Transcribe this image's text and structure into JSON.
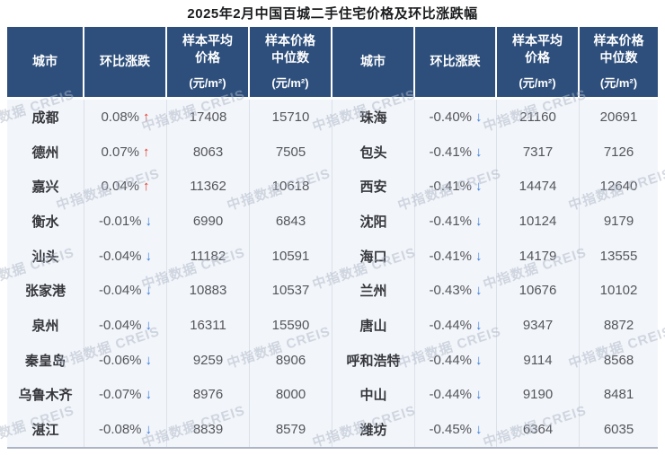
{
  "watermark": "中指数据 CREIS",
  "glyphs": {
    "up": "↑",
    "down": "↓"
  },
  "colors": {
    "header_bg": "#2E4F7C",
    "body_bg": "#F2F5FA",
    "up": "#E03A2A",
    "down": "#3C7EDB",
    "watermark": "#AEB7C6"
  },
  "header": {
    "city": "城市",
    "change": "环比涨跌",
    "avg_l1": "样本平均",
    "avg_l2": "价格",
    "med_l1": "样本价格",
    "med_l2": "中位数",
    "unit": "(元/m²)"
  },
  "chart_data": {
    "type": "table",
    "title": "2025年2月中国百城二手住宅价格及环比涨跌幅",
    "columns": [
      "城市",
      "环比涨跌",
      "样本平均价格(元/m²)",
      "样本价格中位数(元/m²)",
      "城市",
      "环比涨跌",
      "样本平均价格(元/m²)",
      "样本价格中位数(元/m²)"
    ],
    "rows_left": [
      {
        "city": "成都",
        "change": "0.08%",
        "direction": "up",
        "avg": "17408",
        "median": "15710"
      },
      {
        "city": "德州",
        "change": "0.07%",
        "direction": "up",
        "avg": "8063",
        "median": "7505"
      },
      {
        "city": "嘉兴",
        "change": "0.04%",
        "direction": "up",
        "avg": "11362",
        "median": "10618"
      },
      {
        "city": "衡水",
        "change": "-0.01%",
        "direction": "down",
        "avg": "6990",
        "median": "6843"
      },
      {
        "city": "汕头",
        "change": "-0.04%",
        "direction": "down",
        "avg": "11182",
        "median": "10591"
      },
      {
        "city": "张家港",
        "change": "-0.04%",
        "direction": "down",
        "avg": "10883",
        "median": "10537"
      },
      {
        "city": "泉州",
        "change": "-0.04%",
        "direction": "down",
        "avg": "16311",
        "median": "15590"
      },
      {
        "city": "秦皇岛",
        "change": "-0.06%",
        "direction": "down",
        "avg": "9259",
        "median": "8906"
      },
      {
        "city": "乌鲁木齐",
        "change": "-0.07%",
        "direction": "down",
        "avg": "8976",
        "median": "8000"
      },
      {
        "city": "湛江",
        "change": "-0.08%",
        "direction": "down",
        "avg": "8839",
        "median": "8579"
      }
    ],
    "rows_right": [
      {
        "city": "珠海",
        "change": "-0.40%",
        "direction": "down",
        "avg": "21160",
        "median": "20691"
      },
      {
        "city": "包头",
        "change": "-0.41%",
        "direction": "down",
        "avg": "7317",
        "median": "7126"
      },
      {
        "city": "西安",
        "change": "-0.41%",
        "direction": "down",
        "avg": "14474",
        "median": "12640"
      },
      {
        "city": "沈阳",
        "change": "-0.41%",
        "direction": "down",
        "avg": "10124",
        "median": "9179"
      },
      {
        "city": "海口",
        "change": "-0.41%",
        "direction": "down",
        "avg": "14179",
        "median": "13555"
      },
      {
        "city": "兰州",
        "change": "-0.43%",
        "direction": "down",
        "avg": "10676",
        "median": "10102"
      },
      {
        "city": "唐山",
        "change": "-0.44%",
        "direction": "down",
        "avg": "9347",
        "median": "8872"
      },
      {
        "city": "呼和浩特",
        "change": "-0.44%",
        "direction": "down",
        "avg": "9114",
        "median": "8568"
      },
      {
        "city": "中山",
        "change": "-0.44%",
        "direction": "down",
        "avg": "9190",
        "median": "8481"
      },
      {
        "city": "潍坊",
        "change": "-0.45%",
        "direction": "down",
        "avg": "6364",
        "median": "6035"
      }
    ]
  }
}
